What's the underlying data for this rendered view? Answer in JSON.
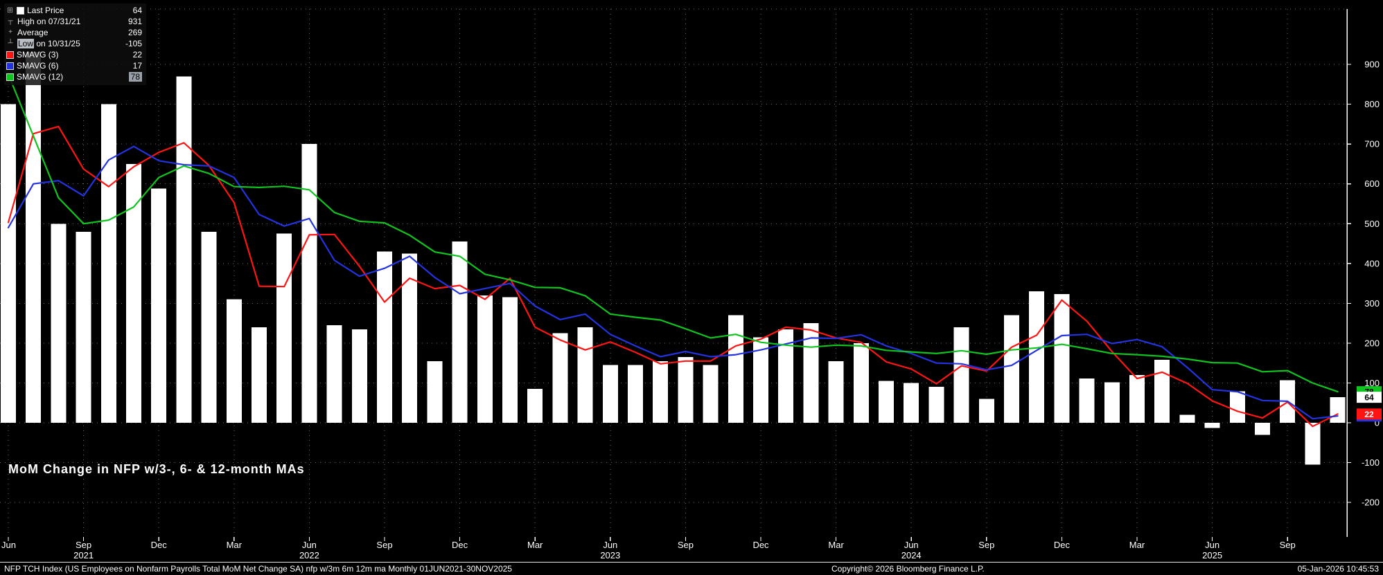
{
  "title": "MoM Change in NFP w/3-, 6- & 12-month MAs",
  "legend": {
    "rows": [
      {
        "expander": true,
        "swatch": "#ffffff",
        "label": "Last Price",
        "value": "64"
      },
      {
        "marker": "┬",
        "label": "High on 07/31/21",
        "value": "931"
      },
      {
        "marker": "+",
        "label": "Average",
        "value": "269"
      },
      {
        "marker": "┴",
        "label_hl": "Low",
        "label": " on 10/31/25",
        "value": "-105"
      },
      {
        "swatch": "#ff1414",
        "label": "SMAVG (3)",
        "value": "22"
      },
      {
        "swatch": "#2433e0",
        "label": "SMAVG (6)",
        "value": "17"
      },
      {
        "swatch": "#10c420",
        "label": "SMAVG (12)",
        "value": "78",
        "value_hl": true
      }
    ]
  },
  "footer": {
    "left": "NFP TCH Index (US Employees on Nonfarm Payrolls Total MoM Net Change SA) nfp w/3m 6m 12m ma Monthly 01JUN2021-30NOV2025",
    "center": "Copyright© 2026 Bloomberg Finance L.P.",
    "right": "05-Jan-2026 10:45:53"
  },
  "chart_data": {
    "type": "bar",
    "title": "MoM Change in NFP w/3-, 6- & 12-month MAs",
    "ylabel": "",
    "xlabel": "",
    "ylim": [
      -200,
      900
    ],
    "ytick_step": 100,
    "grid": true,
    "legend_position": "top-left",
    "background": "#000000",
    "bar_color": "#ffffff",
    "grid_color": "#6e6e6e",
    "x": [
      "Jun 2021",
      "Jul 2021",
      "Aug 2021",
      "Sep 2021",
      "Oct 2021",
      "Nov 2021",
      "Dec 2021",
      "Jan 2022",
      "Feb 2022",
      "Mar 2022",
      "Apr 2022",
      "May 2022",
      "Jun 2022",
      "Jul 2022",
      "Aug 2022",
      "Sep 2022",
      "Oct 2022",
      "Nov 2022",
      "Dec 2022",
      "Jan 2023",
      "Feb 2023",
      "Mar 2023",
      "Apr 2023",
      "May 2023",
      "Jun 2023",
      "Jul 2023",
      "Aug 2023",
      "Sep 2023",
      "Oct 2023",
      "Nov 2023",
      "Dec 2023",
      "Jan 2024",
      "Feb 2024",
      "Mar 2024",
      "Apr 2024",
      "May 2024",
      "Jun 2024",
      "Jul 2024",
      "Aug 2024",
      "Sep 2024",
      "Oct 2024",
      "Nov 2024",
      "Dec 2024",
      "Jan 2025",
      "Feb 2025",
      "Mar 2025",
      "Apr 2025",
      "May 2025",
      "Jun 2025",
      "Jul 2025",
      "Aug 2025",
      "Sep 2025",
      "Oct 2025",
      "Nov 2025"
    ],
    "values": [
      800,
      931,
      500,
      480,
      800,
      650,
      588,
      870,
      480,
      310,
      240,
      475,
      700,
      245,
      235,
      430,
      425,
      155,
      455,
      320,
      315,
      85,
      225,
      240,
      145,
      145,
      155,
      165,
      145,
      270,
      215,
      235,
      250,
      155,
      200,
      105,
      100,
      90,
      240,
      60,
      270,
      330,
      323,
      111,
      102,
      120,
      158,
      20,
      -13,
      79,
      -30,
      107,
      -105,
      64
    ],
    "series": [
      {
        "name": "SMAVG (3)",
        "window": 3,
        "color": "#ff1414",
        "values": [
          503,
          726,
          744,
          637,
          593,
          643,
          679,
          703,
          646,
          553,
          343,
          342,
          472,
          473,
          393,
          303,
          363,
          337,
          345,
          310,
          363,
          240,
          208,
          183,
          203,
          177,
          148,
          155,
          155,
          193,
          210,
          240,
          233,
          213,
          202,
          153,
          135,
          98,
          143,
          130,
          190,
          220,
          308,
          255,
          179,
          111,
          127,
          99,
          55,
          29,
          12,
          52,
          -9,
          22
        ]
      },
      {
        "name": "SMAVG (6)",
        "window": 6,
        "color": "#2433e0",
        "values": [
          490,
          600,
          608,
          570,
          660,
          694,
          658,
          648,
          645,
          616,
          523,
          494,
          513,
          408,
          368,
          388,
          418,
          365,
          324,
          337,
          350,
          293,
          259,
          273,
          222,
          193,
          166,
          179,
          166,
          171,
          183,
          198,
          213,
          212,
          221,
          193,
          174,
          150,
          148,
          133,
          144,
          182,
          219,
          222,
          199,
          209,
          191,
          139,
          83,
          78,
          56,
          54,
          10,
          17
        ]
      },
      {
        "name": "SMAVG (12)",
        "window": 12,
        "color": "#10c420",
        "values": [
          875,
          720,
          565,
          500,
          509,
          542,
          616,
          645,
          626,
          593,
          591,
          594,
          585,
          528,
          506,
          502,
          471,
          429,
          418,
          373,
          359,
          340,
          339,
          319,
          273,
          265,
          258,
          236,
          213,
          222,
          202,
          195,
          190,
          195,
          193,
          182,
          178,
          174,
          181,
          172,
          183,
          188,
          197,
          186,
          174,
          171,
          167,
          160,
          151,
          150,
          128,
          131,
          100,
          78
        ]
      }
    ],
    "xticks": [
      {
        "i": 0,
        "m": "Jun"
      },
      {
        "i": 3,
        "m": "Sep",
        "y": "2021"
      },
      {
        "i": 6,
        "m": "Dec"
      },
      {
        "i": 9,
        "m": "Mar"
      },
      {
        "i": 12,
        "m": "Jun",
        "y": "2022"
      },
      {
        "i": 15,
        "m": "Sep"
      },
      {
        "i": 18,
        "m": "Dec"
      },
      {
        "i": 21,
        "m": "Mar"
      },
      {
        "i": 24,
        "m": "Jun",
        "y": "2023"
      },
      {
        "i": 27,
        "m": "Sep"
      },
      {
        "i": 30,
        "m": "Dec"
      },
      {
        "i": 33,
        "m": "Mar"
      },
      {
        "i": 36,
        "m": "Jun",
        "y": "2024"
      },
      {
        "i": 39,
        "m": "Sep"
      },
      {
        "i": 42,
        "m": "Dec"
      },
      {
        "i": 45,
        "m": "Mar"
      },
      {
        "i": 48,
        "m": "Jun",
        "y": "2025"
      },
      {
        "i": 51,
        "m": "Sep"
      }
    ],
    "axis_badges": [
      {
        "label": "78",
        "value": 78,
        "bg": "#10c420",
        "fg": "#000000"
      },
      {
        "label": "17",
        "value": 17,
        "bg": "#2433e0",
        "fg": "#ffffff"
      },
      {
        "label": "22",
        "value": 22,
        "bg": "#ff1414",
        "fg": "#ffffff"
      },
      {
        "label": "64",
        "value": 64,
        "bg": "#ffffff",
        "fg": "#000000"
      }
    ],
    "stats": {
      "last_price": 64,
      "high": 931,
      "high_date": "07/31/21",
      "average": 269,
      "low": -105,
      "low_date": "10/31/25",
      "smavg3": 22,
      "smavg6": 17,
      "smavg12": 78
    }
  }
}
